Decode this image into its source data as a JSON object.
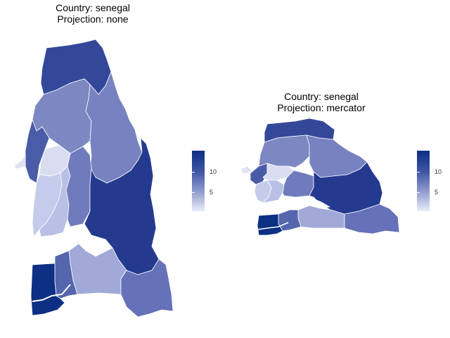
{
  "maps": [
    {
      "title_line1": "Country: senegal",
      "title_line2": "Projection: none"
    },
    {
      "title_line1": "Country: senegal",
      "title_line2": "Projection: mercator"
    }
  ],
  "legend": {
    "ticks": [
      "10",
      "5"
    ],
    "scale_min_color": "#eef0f9",
    "scale_max_color": "#0b2d83"
  }
}
